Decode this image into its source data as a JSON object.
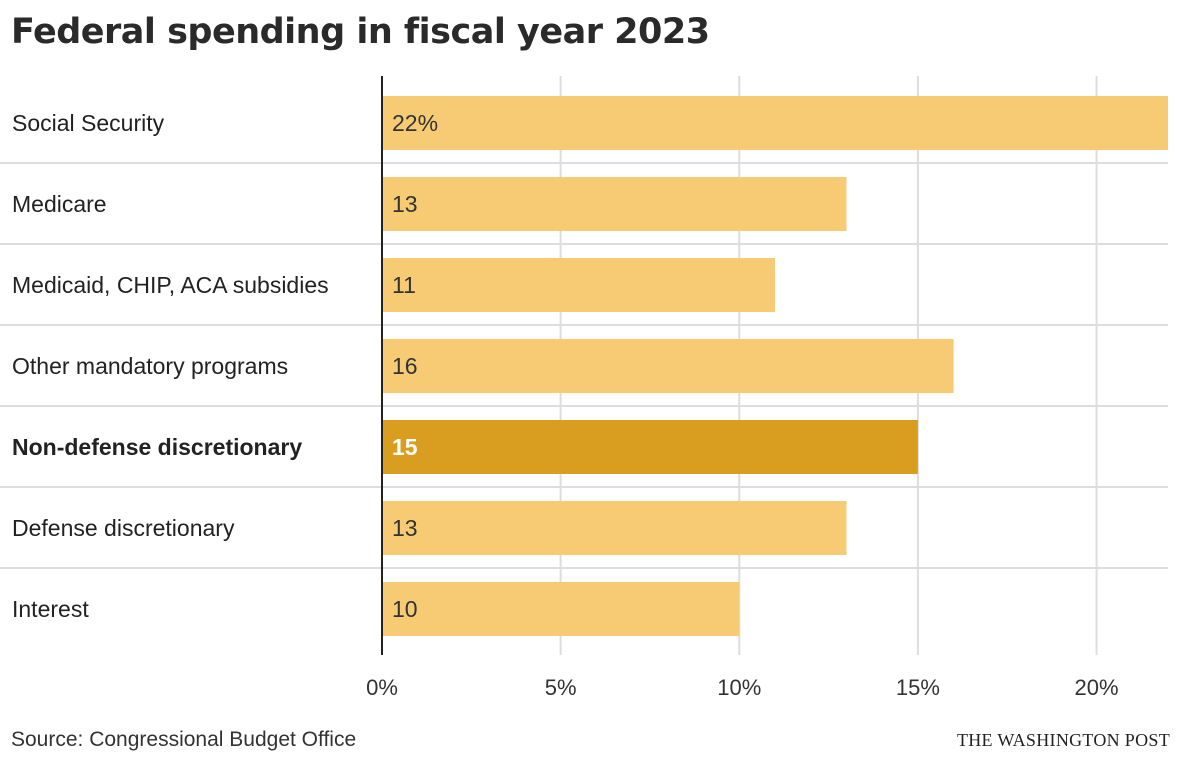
{
  "chart_data": {
    "type": "bar",
    "orientation": "horizontal",
    "title": "Federal spending in fiscal year 2023",
    "categories": [
      "Social Security",
      "Medicare",
      "Medicaid, CHIP, ACA subsidies",
      "Other mandatory programs",
      "Non-defense discretionary",
      "Defense discretionary",
      "Interest"
    ],
    "values": [
      22,
      13,
      11,
      16,
      15,
      13,
      10
    ],
    "data_labels": [
      "22%",
      "13",
      "11",
      "16",
      "15",
      "13",
      "10"
    ],
    "highlighted": "Non-defense discretionary",
    "xlim": [
      0,
      22
    ],
    "xticks": [
      0,
      5,
      10,
      15,
      20
    ],
    "xtick_labels": [
      "0%",
      "5%",
      "10%",
      "15%",
      "20%"
    ],
    "grid": true,
    "colors": {
      "bar": "#f7cb73",
      "highlight": "#d99e20",
      "grid": "#dddddd",
      "axis": "#222222"
    }
  },
  "footer": {
    "source": "Source: Congressional Budget Office",
    "credit": "THE WASHINGTON POST"
  }
}
